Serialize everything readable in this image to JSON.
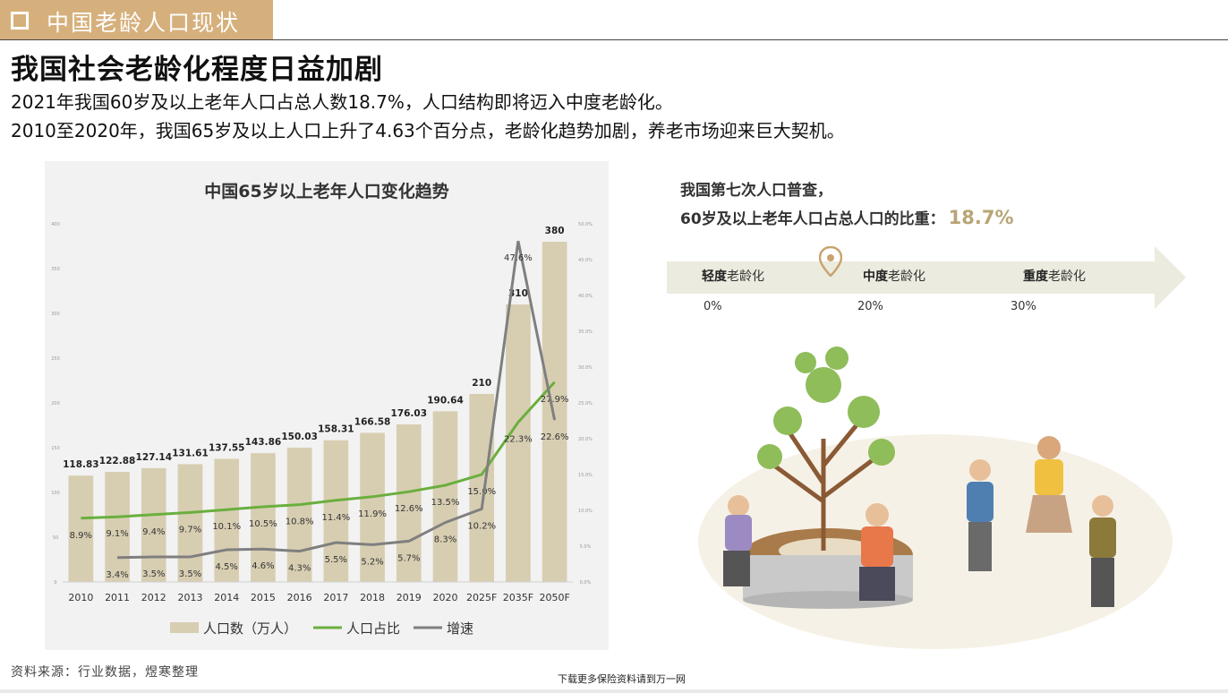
{
  "header": {
    "title": "中国老龄人口现状"
  },
  "headline": "我国社会老龄化程度日益加剧",
  "subtitle1": "2021年我国60岁及以上老年人口占总人数18.7%，人口结构即将迈入中度老龄化。",
  "subtitle2": "2010至2020年，我国65岁及以上人口上升了4.63个百分点，老龄化趋势加剧，养老市场迎来巨大契机。",
  "right": {
    "line1": "我国第七次人口普查，",
    "line2": "60岁及以上老年人口占总人口的比重：",
    "highlight": "18.7%",
    "stages": [
      {
        "strong": "轻度",
        "rest": "老龄化"
      },
      {
        "strong": "中度",
        "rest": "老龄化"
      },
      {
        "strong": "重度",
        "rest": "老龄化"
      }
    ],
    "percents": [
      "0%",
      "20%",
      "30%"
    ]
  },
  "source": "资料来源：行业数据，煜寒整理",
  "footer": "下载更多保险资料请到万一网",
  "colors": {
    "bar": "#d7ceb2",
    "share": "#6aaf3e",
    "growth": "#7f7f7f",
    "accent": "#d6b07c",
    "highlight": "#b8a576"
  },
  "chart_data": {
    "type": "bar",
    "title": "中国65岁以上老年人口变化趋势",
    "categories": [
      "2010",
      "2011",
      "2012",
      "2013",
      "2014",
      "2015",
      "2016",
      "2017",
      "2018",
      "2019",
      "2020",
      "2025F",
      "2035F",
      "2050F"
    ],
    "series": [
      {
        "name": "人口数（万人）",
        "type": "bar",
        "values": [
          118.83,
          122.88,
          127.14,
          131.61,
          137.55,
          143.86,
          150.03,
          158.31,
          166.58,
          176.03,
          190.64,
          210,
          310,
          380
        ],
        "labels": [
          "118.83",
          "122.88",
          "127.14",
          "131.61",
          "137.55",
          "143.86",
          "150.03",
          "158.31",
          "166.58",
          "176.03",
          "190.64",
          "210",
          "310",
          "380"
        ]
      },
      {
        "name": "人口占比",
        "type": "line",
        "values": [
          8.9,
          9.1,
          9.4,
          9.7,
          10.1,
          10.5,
          10.8,
          11.4,
          11.9,
          12.6,
          13.5,
          15.0,
          22.3,
          27.9
        ],
        "labels": [
          "8.9%",
          "9.1%",
          "9.4%",
          "9.7%",
          "10.1%",
          "10.5%",
          "10.8%",
          "11.4%",
          "11.9%",
          "12.6%",
          "13.5%",
          "15.0%",
          "22.3%",
          "27.9%"
        ]
      },
      {
        "name": "增速",
        "type": "line",
        "values": [
          null,
          3.4,
          3.5,
          3.5,
          4.5,
          4.6,
          4.3,
          5.5,
          5.2,
          5.7,
          8.3,
          10.2,
          47.6,
          22.6
        ],
        "labels": [
          "",
          "3.4%",
          "3.5%",
          "3.5%",
          "4.5%",
          "4.6%",
          "4.3%",
          "5.5%",
          "5.2%",
          "5.7%",
          "8.3%",
          "10.2%",
          "47.6%",
          "22.6%"
        ]
      }
    ],
    "y_left": {
      "ticks": [
        "0",
        "50",
        "100",
        "150",
        "200",
        "250",
        "300",
        "350",
        "400"
      ],
      "range": [
        0,
        400
      ]
    },
    "y_right": {
      "ticks": [
        "0.0%",
        "5.0%",
        "10.0%",
        "15.0%",
        "20.0%",
        "25.0%",
        "30.0%",
        "35.0%",
        "40.0%",
        "45.0%",
        "50.0%"
      ],
      "range": [
        0,
        50
      ]
    },
    "legend": {
      "position": "bottom"
    },
    "grid": false
  }
}
